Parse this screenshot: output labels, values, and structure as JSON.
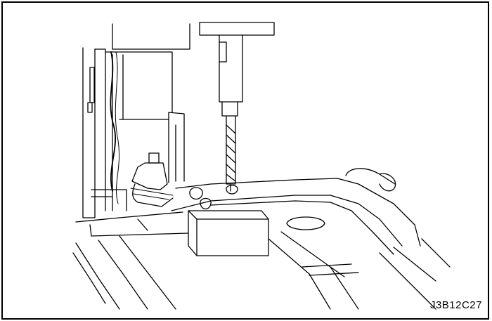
{
  "figure": {
    "code": "J3B12C27"
  },
  "colors": {
    "line": "#000000",
    "background": "#ffffff"
  }
}
